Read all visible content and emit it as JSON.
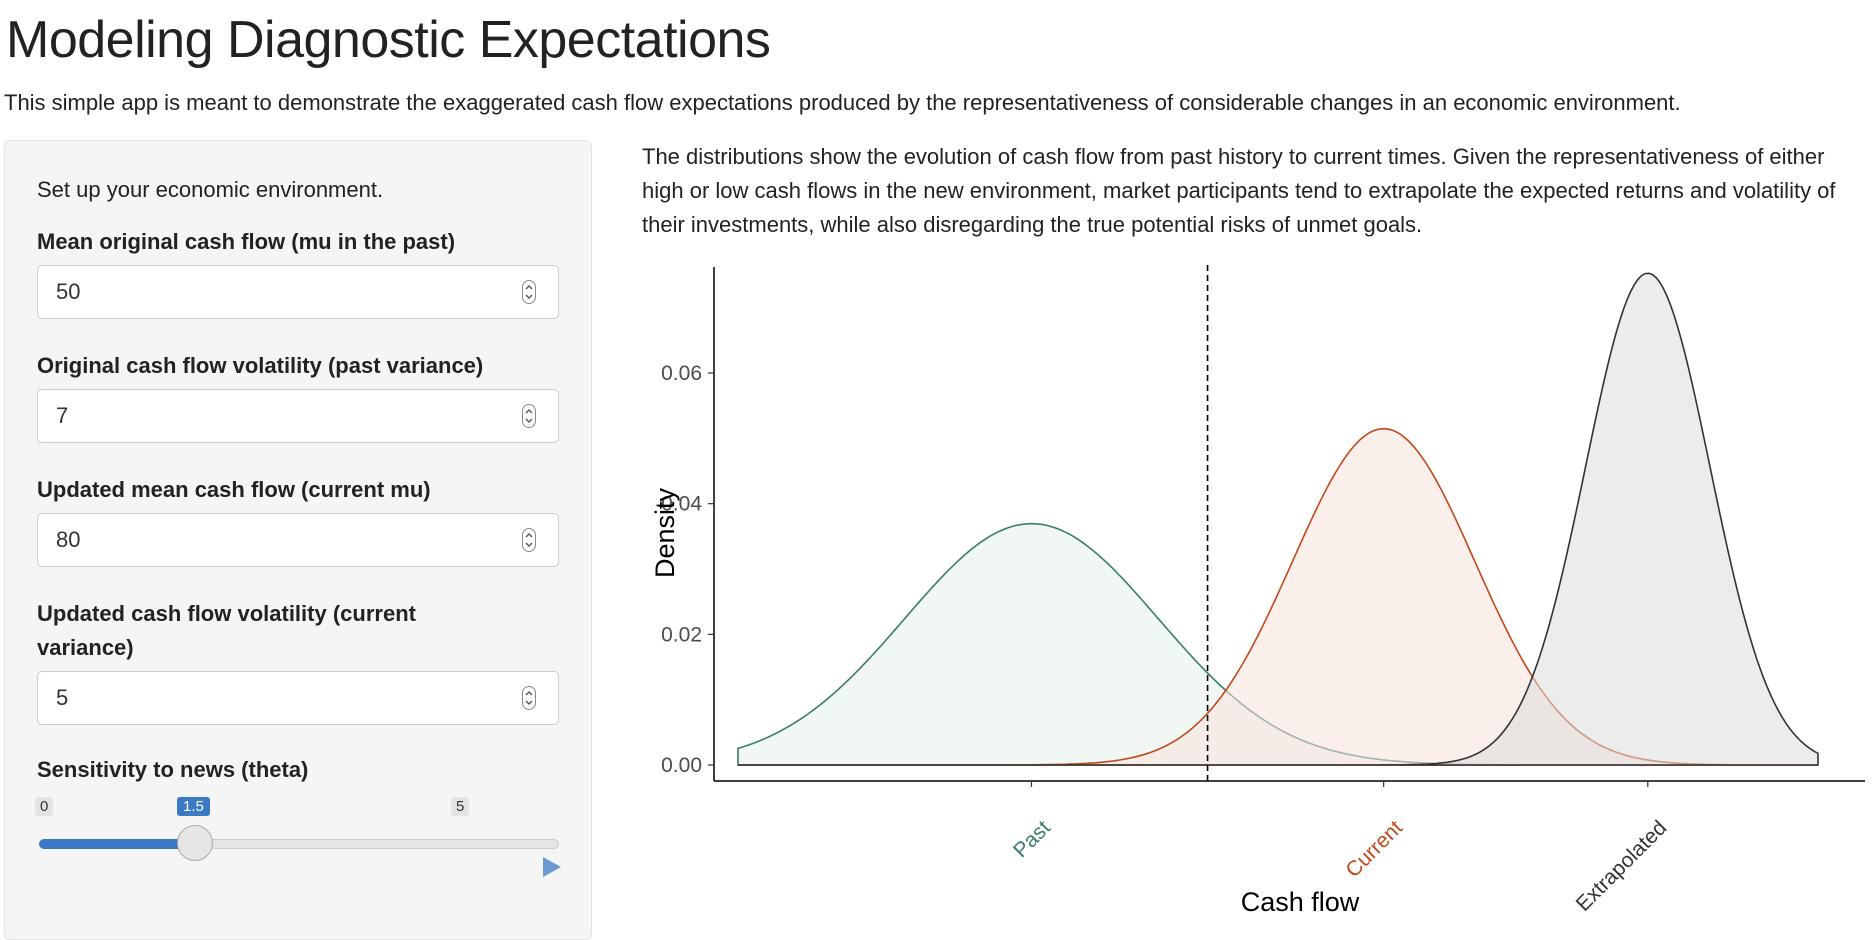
{
  "header": {
    "title": "Modeling Diagnostic Expectations",
    "description": "This simple app is meant to demonstrate the exaggerated cash flow expectations produced by the representativeness of considerable changes in an economic environment."
  },
  "sidebar": {
    "intro": "Set up your economic environment.",
    "fields": [
      {
        "label": "Mean original cash flow (mu in the past)",
        "value": "50"
      },
      {
        "label": "Original cash flow volatility (past variance)",
        "value": "7"
      },
      {
        "label": "Updated mean cash flow (current mu)",
        "value": "80"
      },
      {
        "label": "Updated cash flow volatility (current variance)",
        "value": "5"
      }
    ],
    "slider": {
      "label": "Sensitivity to news (theta)",
      "min": 0,
      "max": 5,
      "value": 1.5,
      "min_label": "0",
      "max_label": "5",
      "value_label": "1.5"
    }
  },
  "main": {
    "description": "The distributions show the evolution of cash flow from past history to current times. Given the representativeness of either high or low cash flows in the new environment, market participants tend to extrapolate the expected returns and volatility of their investments, while also disregarding the true potential risks of unmet goals."
  },
  "chart_data": {
    "type": "area",
    "xlabel": "Cash flow",
    "ylabel": "Density",
    "ylim": [
      0,
      0.075
    ],
    "xlim": [
      25,
      117
    ],
    "yticks": [
      0.0,
      0.02,
      0.04,
      0.06
    ],
    "ytick_labels": [
      "0.00",
      "0.02",
      "0.04",
      "0.06"
    ],
    "vline": {
      "x": 65,
      "style": "dashed",
      "color": "#000000"
    },
    "grid": false,
    "xticks": [
      {
        "x": 50,
        "label": "Past",
        "color": "#3a7d6a"
      },
      {
        "x": 80,
        "label": "Current",
        "color": "#c1481b"
      },
      {
        "x": 102.5,
        "label": "Extrapolated",
        "color": "#333333"
      }
    ],
    "series": [
      {
        "mean": 50,
        "sd": 10.8,
        "stroke": "#3a7d6a",
        "fill": "#e5f0ea"
      },
      {
        "mean": 80,
        "sd": 7.75,
        "stroke": "#c1481b",
        "fill": "#f8e1dc"
      },
      {
        "mean": 102.5,
        "sd": 5.3,
        "stroke": "#333333",
        "fill": "#dcdcdc"
      }
    ]
  }
}
